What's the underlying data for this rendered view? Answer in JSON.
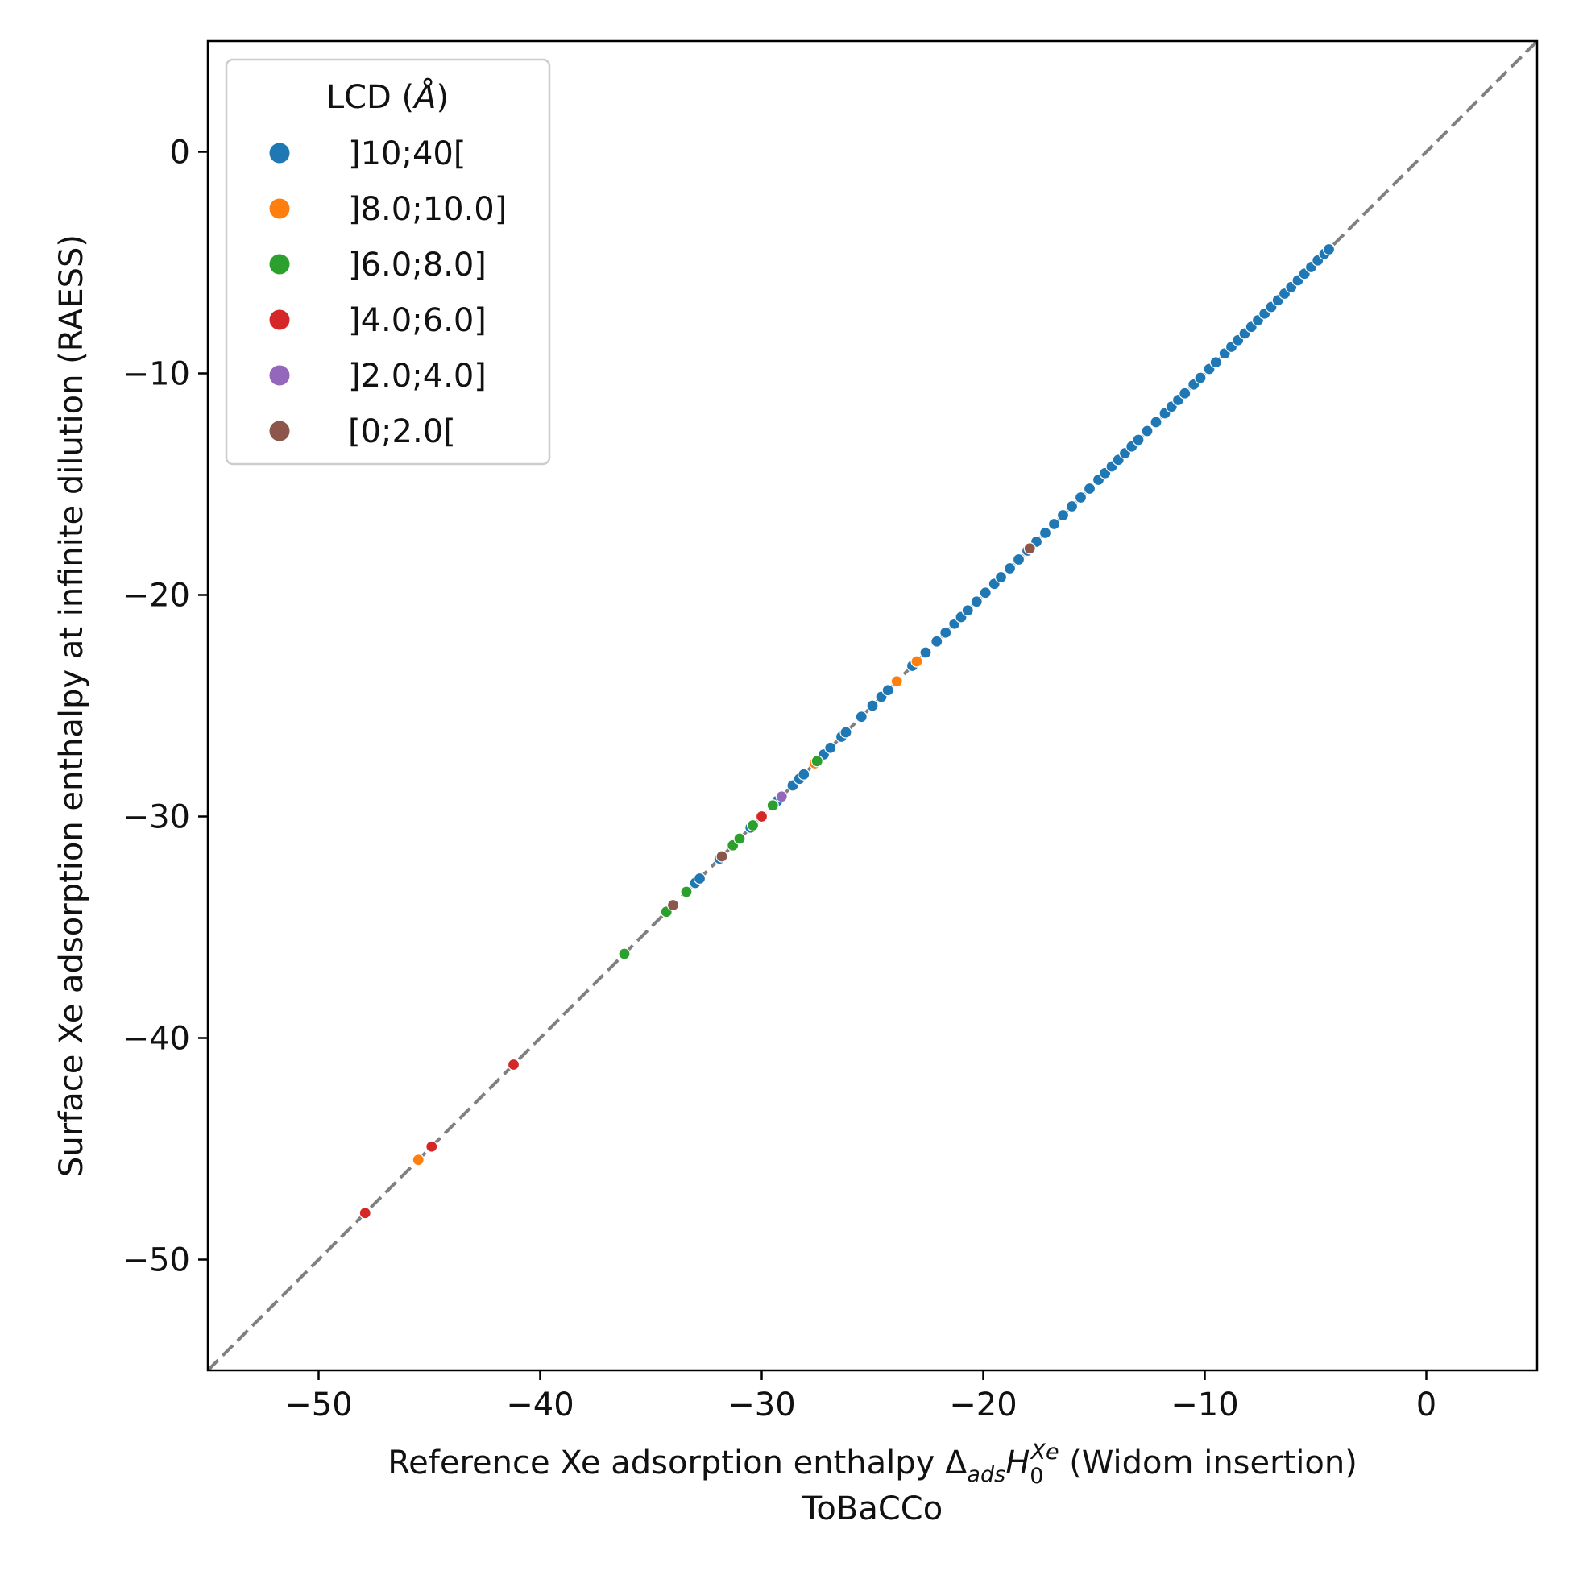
{
  "chart_data": {
    "type": "scatter",
    "title": "",
    "xlabel_parts": {
      "pre": "Reference Xe adsorption enthalpy ",
      "delta": "Δ",
      "sub_ads": "ads",
      "H": "H",
      "sub_zero": "0",
      "sup": "Xe",
      "post": " (Widom insertion)"
    },
    "xlabel_line2": "ToBaCCo",
    "ylabel": "Surface Xe adsorption enthalpy at infinite dilution (RAESS)",
    "xlim": [
      -55,
      5
    ],
    "ylim": [
      -55,
      5
    ],
    "xticks": [
      -50,
      -40,
      -30,
      -20,
      -10,
      0
    ],
    "yticks": [
      -50,
      -40,
      -30,
      -20,
      -10,
      0
    ],
    "tick_labels": [
      "−50",
      "−40",
      "−30",
      "−20",
      "−10",
      "0"
    ],
    "grid": false,
    "reference_line": {
      "style": "dashed",
      "color": "#808080",
      "from": [
        -55,
        -55
      ],
      "to": [
        5,
        5
      ]
    },
    "legend": {
      "title_text": "LCD (",
      "title_unit": "Å",
      "title_close": ")",
      "placement": "upper-left"
    },
    "series": [
      {
        "name": "]10;40[",
        "color": "#1f77b4",
        "points": [
          [
            -33.0,
            -33.0
          ],
          [
            -32.8,
            -32.8
          ],
          [
            -31.9,
            -31.9
          ],
          [
            -30.5,
            -30.5
          ],
          [
            -29.3,
            -29.3
          ],
          [
            -28.6,
            -28.6
          ],
          [
            -28.3,
            -28.3
          ],
          [
            -28.1,
            -28.1
          ],
          [
            -27.2,
            -27.2
          ],
          [
            -26.9,
            -26.9
          ],
          [
            -26.4,
            -26.4
          ],
          [
            -26.2,
            -26.2
          ],
          [
            -25.5,
            -25.5
          ],
          [
            -25.0,
            -25.0
          ],
          [
            -24.6,
            -24.6
          ],
          [
            -24.3,
            -24.3
          ],
          [
            -23.2,
            -23.2
          ],
          [
            -22.6,
            -22.6
          ],
          [
            -22.1,
            -22.1
          ],
          [
            -21.7,
            -21.7
          ],
          [
            -21.3,
            -21.3
          ],
          [
            -21.0,
            -21.0
          ],
          [
            -20.7,
            -20.7
          ],
          [
            -20.3,
            -20.3
          ],
          [
            -19.9,
            -19.9
          ],
          [
            -19.5,
            -19.5
          ],
          [
            -19.2,
            -19.2
          ],
          [
            -18.8,
            -18.8
          ],
          [
            -18.4,
            -18.4
          ],
          [
            -18.0,
            -18.0
          ],
          [
            -17.6,
            -17.6
          ],
          [
            -17.2,
            -17.2
          ],
          [
            -16.8,
            -16.8
          ],
          [
            -16.4,
            -16.4
          ],
          [
            -16.0,
            -16.0
          ],
          [
            -15.6,
            -15.6
          ],
          [
            -15.2,
            -15.2
          ],
          [
            -14.8,
            -14.8
          ],
          [
            -14.5,
            -14.5
          ],
          [
            -14.2,
            -14.2
          ],
          [
            -13.9,
            -13.9
          ],
          [
            -13.6,
            -13.6
          ],
          [
            -13.3,
            -13.3
          ],
          [
            -13.0,
            -13.0
          ],
          [
            -12.6,
            -12.6
          ],
          [
            -12.2,
            -12.2
          ],
          [
            -11.8,
            -11.8
          ],
          [
            -11.5,
            -11.5
          ],
          [
            -11.2,
            -11.2
          ],
          [
            -10.9,
            -10.9
          ],
          [
            -10.5,
            -10.5
          ],
          [
            -10.2,
            -10.2
          ],
          [
            -9.8,
            -9.8
          ],
          [
            -9.5,
            -9.5
          ],
          [
            -9.1,
            -9.1
          ],
          [
            -8.8,
            -8.8
          ],
          [
            -8.5,
            -8.5
          ],
          [
            -8.2,
            -8.2
          ],
          [
            -7.9,
            -7.9
          ],
          [
            -7.6,
            -7.6
          ],
          [
            -7.3,
            -7.3
          ],
          [
            -7.0,
            -7.0
          ],
          [
            -6.7,
            -6.7
          ],
          [
            -6.4,
            -6.4
          ],
          [
            -6.1,
            -6.1
          ],
          [
            -5.8,
            -5.8
          ],
          [
            -5.5,
            -5.5
          ],
          [
            -5.2,
            -5.2
          ],
          [
            -4.9,
            -4.9
          ],
          [
            -4.6,
            -4.6
          ],
          [
            -4.4,
            -4.4
          ]
        ]
      },
      {
        "name": "]8.0;10.0]",
        "color": "#ff7f0e",
        "points": [
          [
            -45.5,
            -45.5
          ],
          [
            -27.6,
            -27.6
          ],
          [
            -23.9,
            -23.9
          ],
          [
            -23.0,
            -23.0
          ]
        ]
      },
      {
        "name": "]6.0;8.0]",
        "color": "#2ca02c",
        "points": [
          [
            -36.2,
            -36.2
          ],
          [
            -34.3,
            -34.3
          ],
          [
            -33.4,
            -33.4
          ],
          [
            -31.3,
            -31.3
          ],
          [
            -31.0,
            -31.0
          ],
          [
            -30.4,
            -30.4
          ],
          [
            -29.5,
            -29.5
          ],
          [
            -27.5,
            -27.5
          ]
        ]
      },
      {
        "name": "]4.0;6.0]",
        "color": "#d62728",
        "points": [
          [
            -47.9,
            -47.9
          ],
          [
            -44.9,
            -44.9
          ],
          [
            -41.2,
            -41.2
          ],
          [
            -30.0,
            -30.0
          ]
        ]
      },
      {
        "name": "]2.0;4.0]",
        "color": "#9467bd",
        "points": [
          [
            -29.1,
            -29.1
          ]
        ]
      },
      {
        "name": "[0;2.0[",
        "color": "#8c564b",
        "points": [
          [
            -34.0,
            -34.0
          ],
          [
            -31.8,
            -31.8
          ],
          [
            -17.9,
            -17.9
          ]
        ]
      }
    ]
  }
}
